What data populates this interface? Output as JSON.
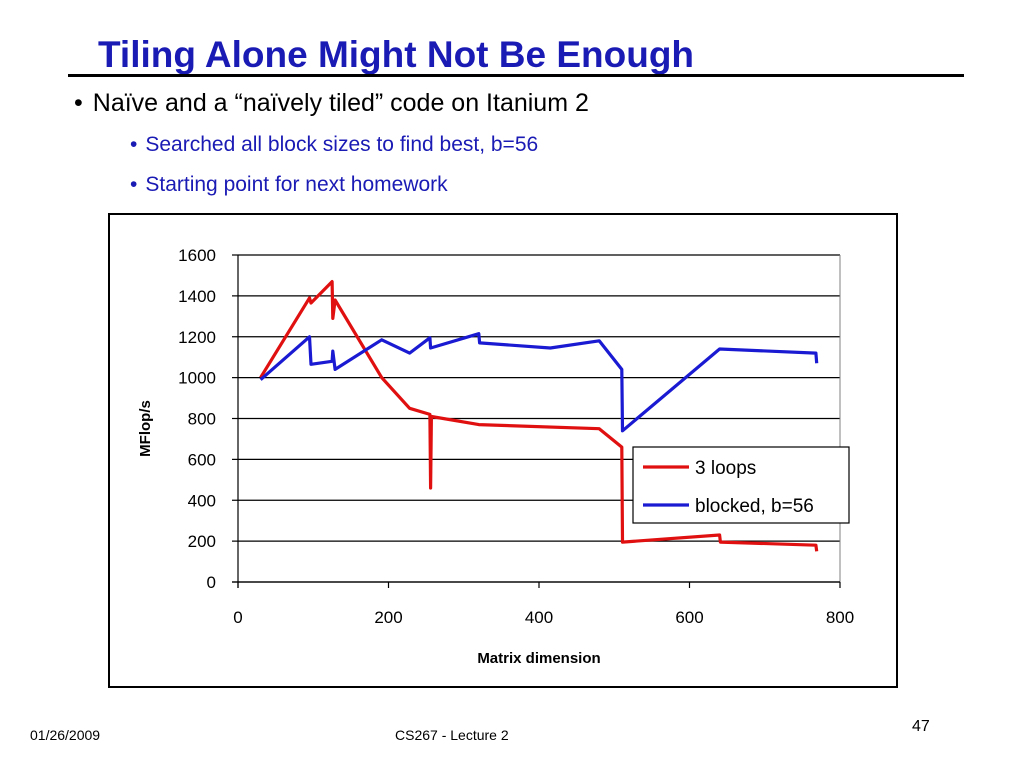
{
  "slide": {
    "title": "Tiling Alone Might Not Be Enough",
    "bullets": [
      {
        "text": "Naïve and a “naïvely tiled” code on Itanium 2",
        "level": 1
      },
      {
        "text": "Searched all block sizes to find best, b=56",
        "level": 2
      },
      {
        "text": "Starting point for next homework",
        "level": 2
      }
    ],
    "footer": {
      "date": "01/26/2009",
      "course": "CS267 - Lecture 2",
      "page": "47"
    },
    "colors": {
      "title": "#1a1ab4",
      "sub_bullet": "#1a1ab4"
    }
  },
  "chart_data": {
    "type": "line",
    "title": "",
    "xlabel": "Matrix dimension",
    "ylabel": "MFlop/s",
    "xlim": [
      0,
      800
    ],
    "ylim": [
      0,
      1600
    ],
    "x_ticks": [
      0,
      200,
      400,
      600,
      800
    ],
    "y_ticks": [
      0,
      200,
      400,
      600,
      800,
      1000,
      1200,
      1400,
      1600
    ],
    "grid": "horizontal",
    "legend": "inside-right",
    "series": [
      {
        "name": "3 loops",
        "color": "#e01010",
        "points": [
          [
            30,
            1000
          ],
          [
            95,
            1390
          ],
          [
            97,
            1365
          ],
          [
            125,
            1470
          ],
          [
            126,
            1290
          ],
          [
            129,
            1380
          ],
          [
            191,
            1000
          ],
          [
            228,
            850
          ],
          [
            255,
            820
          ],
          [
            256,
            460
          ],
          [
            257,
            810
          ],
          [
            320,
            770
          ],
          [
            480,
            750
          ],
          [
            510,
            660
          ],
          [
            511,
            195
          ],
          [
            640,
            230
          ],
          [
            641,
            195
          ],
          [
            768,
            180
          ],
          [
            769,
            150
          ]
        ]
      },
      {
        "name": "blocked, b=56",
        "color": "#1a1ad2",
        "points": [
          [
            30,
            990
          ],
          [
            95,
            1200
          ],
          [
            97,
            1065
          ],
          [
            125,
            1080
          ],
          [
            126,
            1130
          ],
          [
            129,
            1040
          ],
          [
            191,
            1185
          ],
          [
            228,
            1120
          ],
          [
            255,
            1195
          ],
          [
            256,
            1145
          ],
          [
            320,
            1215
          ],
          [
            321,
            1170
          ],
          [
            415,
            1145
          ],
          [
            480,
            1180
          ],
          [
            510,
            1040
          ],
          [
            511,
            740
          ],
          [
            640,
            1140
          ],
          [
            768,
            1120
          ],
          [
            769,
            1070
          ]
        ]
      }
    ]
  }
}
